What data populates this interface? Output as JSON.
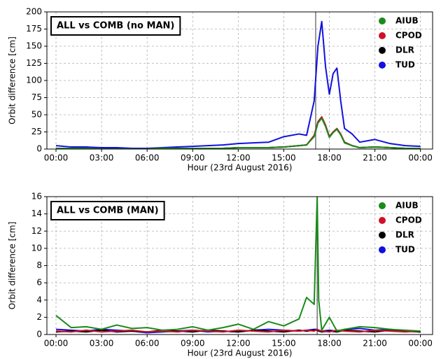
{
  "chart_data": [
    {
      "type": "line",
      "title": "ALL vs COMB (no MAN)",
      "y_label": "Orbit difference [cm]",
      "x_label": "Hour (23rd August 2016)",
      "x": [
        0,
        1,
        2,
        3,
        4,
        5,
        6,
        7,
        8,
        9,
        10,
        11,
        12,
        13,
        14,
        15,
        16,
        16.5,
        17,
        17.25,
        17.5,
        17.75,
        18,
        18.25,
        18.5,
        18.75,
        19,
        19.5,
        20,
        21,
        22,
        23,
        24
      ],
      "series": [
        {
          "name": "AIUB",
          "color": "#1a8a1a",
          "values": [
            1,
            1,
            1,
            0,
            0,
            0,
            0,
            1,
            1,
            1,
            1,
            1,
            2,
            2,
            2,
            3,
            5,
            6,
            18,
            38,
            45,
            33,
            17,
            24,
            29,
            21,
            9,
            5,
            2,
            3,
            2,
            1,
            1
          ]
        },
        {
          "name": "CPOD",
          "color": "#d0102a",
          "values": [
            1,
            1,
            1,
            0,
            0,
            0,
            0,
            1,
            1,
            1,
            1,
            1,
            2,
            2,
            2,
            3,
            5,
            6,
            20,
            40,
            47,
            35,
            18,
            25,
            30,
            22,
            10,
            5,
            2,
            3,
            2,
            1,
            1
          ]
        },
        {
          "name": "DLR",
          "color": "#000000",
          "values": [
            1,
            1,
            1,
            0,
            0,
            0,
            0,
            1,
            1,
            1,
            1,
            1,
            2,
            2,
            2,
            3,
            5,
            6,
            19,
            39,
            46,
            34,
            18,
            25,
            29,
            21,
            10,
            5,
            2,
            3,
            2,
            1,
            1
          ]
        },
        {
          "name": "TUD",
          "color": "#1010e0",
          "values": [
            5,
            3,
            3,
            2,
            2,
            1,
            1,
            2,
            3,
            4,
            5,
            6,
            8,
            9,
            10,
            18,
            22,
            20,
            70,
            150,
            186,
            120,
            80,
            110,
            118,
            70,
            30,
            22,
            10,
            14,
            8,
            5,
            4
          ]
        }
      ],
      "xlim": [
        -0.6,
        24.8
      ],
      "xticks": [
        {
          "value": 0,
          "label": "00:00"
        },
        {
          "value": 3,
          "label": "03:00"
        },
        {
          "value": 6,
          "label": "06:00"
        },
        {
          "value": 9,
          "label": "09:00"
        },
        {
          "value": 12,
          "label": "12:00"
        },
        {
          "value": 15,
          "label": "15:00"
        },
        {
          "value": 18,
          "label": "18:00"
        },
        {
          "value": 21,
          "label": "21:00"
        },
        {
          "value": 24,
          "label": "00:00"
        }
      ],
      "ylim": [
        0,
        200
      ],
      "yticks": [
        0,
        25,
        50,
        75,
        100,
        125,
        150,
        175,
        200
      ],
      "vline": 17.1,
      "grid": true,
      "legend": "upper right"
    },
    {
      "type": "line",
      "title": "ALL vs COMB (MAN)",
      "y_label": "Orbit difference [cm]",
      "x_label": "Hour (23rd August 2016)",
      "x": [
        0,
        1,
        2,
        3,
        4,
        5,
        6,
        7,
        8,
        9,
        10,
        11,
        12,
        13,
        14,
        15,
        16,
        16.5,
        17,
        17.2,
        17.3,
        17.5,
        18,
        18.5,
        19,
        20,
        21,
        22,
        23,
        24
      ],
      "series": [
        {
          "name": "AIUB",
          "color": "#1a8a1a",
          "values": [
            2.2,
            0.8,
            0.9,
            0.6,
            1.1,
            0.7,
            0.8,
            0.5,
            0.6,
            0.9,
            0.5,
            0.8,
            1.2,
            0.6,
            1.5,
            1.0,
            1.8,
            4.3,
            3.5,
            16,
            4,
            0.5,
            2.0,
            0.4,
            0.6,
            0.9,
            0.8,
            0.6,
            0.5,
            0.4
          ]
        },
        {
          "name": "CPOD",
          "color": "#d0102a",
          "values": [
            0.4,
            0.3,
            0.5,
            0.3,
            0.4,
            0.5,
            0.3,
            0.4,
            0.3,
            0.5,
            0.4,
            0.3,
            0.5,
            0.4,
            0.3,
            0.5,
            0.4,
            0.5,
            0.4,
            0.6,
            0.5,
            0.4,
            0.3,
            0.5,
            0.4,
            0.3,
            0.5,
            0.4,
            0.3,
            0.4
          ]
        },
        {
          "name": "DLR",
          "color": "#000000",
          "values": [
            0.3,
            0.4,
            0.3,
            0.5,
            0.3,
            0.4,
            0.3,
            0.5,
            0.4,
            0.3,
            0.5,
            0.4,
            0.3,
            0.5,
            0.4,
            0.3,
            0.5,
            0.4,
            0.5,
            0.5,
            0.4,
            0.3,
            0.4,
            0.3,
            0.5,
            0.4,
            0.3,
            0.5,
            0.4,
            0.3
          ]
        },
        {
          "name": "TUD",
          "color": "#1010e0",
          "values": [
            0.6,
            0.5,
            0.4,
            0.6,
            0.5,
            0.4,
            0.2,
            0.3,
            0.4,
            0.5,
            0.3,
            0.4,
            0.3,
            0.5,
            0.6,
            0.5,
            0.4,
            0.5,
            0.6,
            0.6,
            0.5,
            0.4,
            0.5,
            0.4,
            0.6,
            0.7,
            0.5,
            0.6,
            0.4,
            0.3
          ]
        }
      ],
      "xlim": [
        -0.6,
        24.8
      ],
      "xticks": [
        {
          "value": 0,
          "label": "00:00"
        },
        {
          "value": 3,
          "label": "03:00"
        },
        {
          "value": 6,
          "label": "06:00"
        },
        {
          "value": 9,
          "label": "09:00"
        },
        {
          "value": 12,
          "label": "12:00"
        },
        {
          "value": 15,
          "label": "15:00"
        },
        {
          "value": 18,
          "label": "18:00"
        },
        {
          "value": 21,
          "label": "21:00"
        },
        {
          "value": 24,
          "label": "00:00"
        }
      ],
      "ylim": [
        0,
        16
      ],
      "yticks": [
        0,
        2,
        4,
        6,
        8,
        10,
        12,
        14,
        16
      ],
      "vline": 17.2,
      "grid": true,
      "legend": "upper right"
    }
  ]
}
